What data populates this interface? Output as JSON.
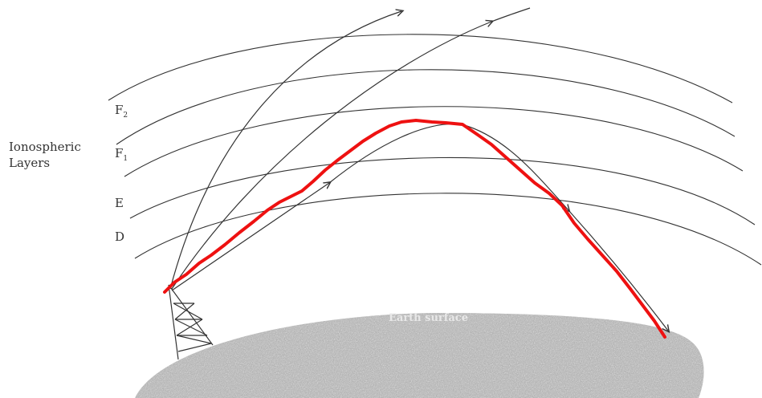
{
  "labels": {
    "group_line1": "Ionospheric",
    "group_line2": "Layers",
    "f2": "F",
    "f2_sub": "2",
    "f1": "F",
    "f1_sub": "1",
    "e": "E",
    "d": "D",
    "surface": "Earth surface"
  },
  "colors": {
    "ink": "#333333",
    "highlight": "#ee1111",
    "ground": "#a9a9a9"
  }
}
